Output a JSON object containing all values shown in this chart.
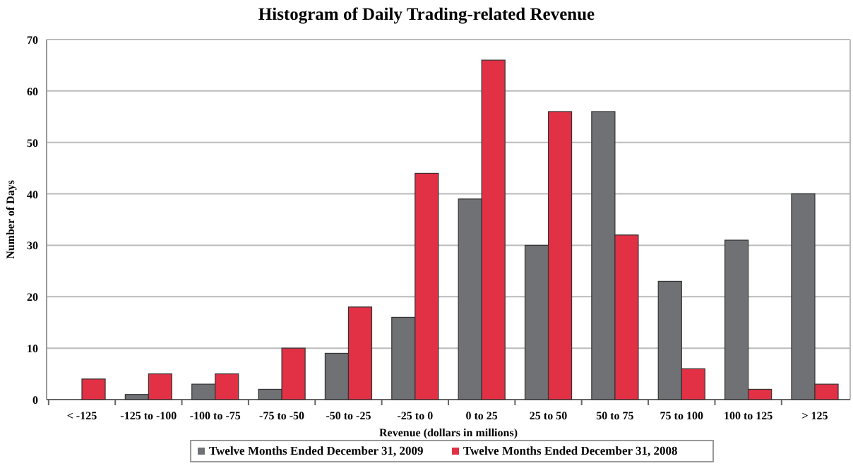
{
  "chart_data": {
    "type": "bar",
    "title": "Histogram of Daily Trading-related Revenue",
    "xlabel": "Revenue (dollars in millions)",
    "ylabel": "Number of Days",
    "categories": [
      "< -125",
      "-125 to -100",
      "-100 to -75",
      "-75 to -50",
      "-50 to -25",
      "-25 to 0",
      "0 to 25",
      "25 to 50",
      "50 to 75",
      "75 to 100",
      "100 to 125",
      "> 125"
    ],
    "series": [
      {
        "name": "Twelve Months Ended December 31, 2009",
        "color": "#707174",
        "values": [
          0,
          1,
          3,
          2,
          9,
          16,
          39,
          30,
          56,
          23,
          31,
          40
        ]
      },
      {
        "name": "Twelve Months Ended December 31, 2008",
        "color": "#e23145",
        "values": [
          4,
          5,
          5,
          10,
          18,
          44,
          66,
          56,
          32,
          6,
          2,
          3
        ]
      }
    ],
    "ylim": [
      0,
      70
    ],
    "yticks": [
      0,
      10,
      20,
      30,
      40,
      50,
      60,
      70
    ],
    "grid": "y",
    "legend": "bottom"
  }
}
